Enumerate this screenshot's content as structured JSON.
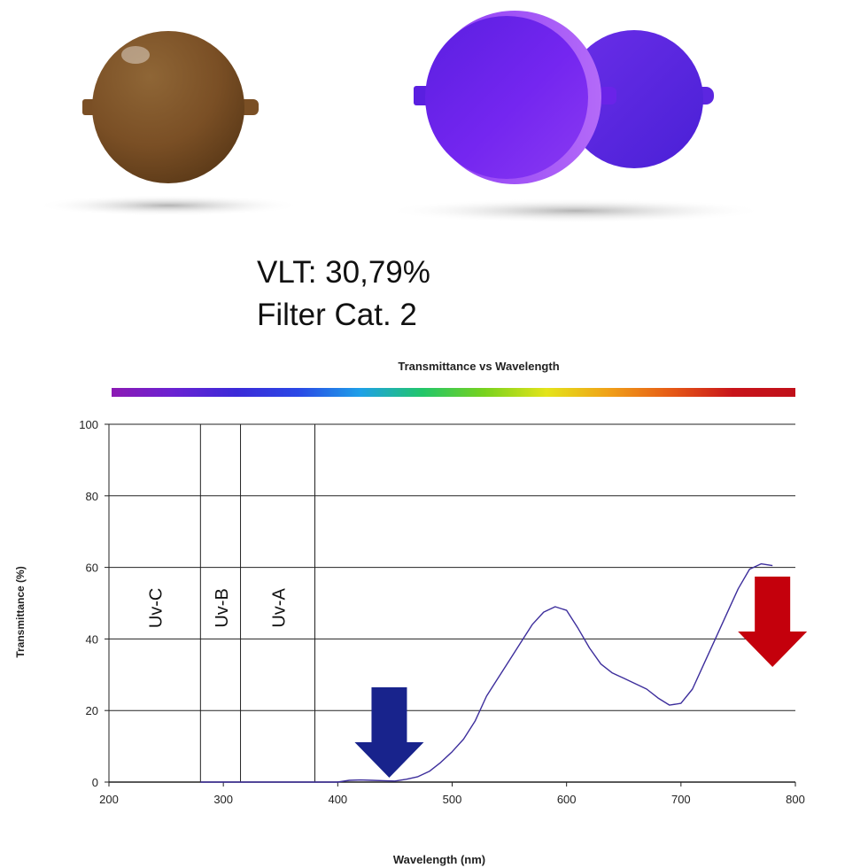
{
  "product": {
    "vlt_text": "VLT: 30,79%",
    "filter_text": "Filter Cat. 2",
    "lens_colors": {
      "brown": "#7a4f25",
      "purple": "#6a23e8",
      "purple_back": "#5c26e0"
    }
  },
  "chart_data": {
    "type": "line",
    "title": "Transmittance vs Wavelength",
    "xlabel": "Wavelength (nm)",
    "ylabel": "Transmittance (%)",
    "xlim": [
      200,
      800
    ],
    "ylim": [
      0,
      100
    ],
    "x_ticks": [
      200,
      300,
      400,
      500,
      600,
      700,
      800
    ],
    "y_ticks": [
      0,
      20,
      40,
      60,
      80,
      100
    ],
    "grid": "horizontal",
    "regions": [
      {
        "label": "Uv-C",
        "from": 200,
        "to": 280
      },
      {
        "label": "Uv-B",
        "from": 280,
        "to": 315
      },
      {
        "label": "Uv-A",
        "from": 315,
        "to": 380
      }
    ],
    "series": [
      {
        "color": "#3d2e9c",
        "x": [
          280,
          300,
          350,
          380,
          400,
          410,
          420,
          430,
          440,
          450,
          460,
          470,
          480,
          490,
          500,
          510,
          520,
          530,
          540,
          550,
          560,
          570,
          580,
          590,
          600,
          610,
          620,
          630,
          640,
          650,
          660,
          670,
          680,
          690,
          700,
          710,
          720,
          730,
          740,
          750,
          760,
          770,
          780
        ],
        "y": [
          0,
          0,
          0,
          0,
          0,
          0.5,
          0.6,
          0.5,
          0.4,
          0.3,
          0.8,
          1.5,
          3,
          5.5,
          8.5,
          12,
          17,
          24,
          29,
          34,
          39,
          44,
          47.5,
          49,
          48,
          43,
          37.5,
          33,
          30.5,
          29,
          27.5,
          26,
          23.5,
          21.5,
          22,
          26,
          33,
          40,
          47,
          54,
          59.5,
          61,
          60.5
        ]
      }
    ],
    "annotations": [
      {
        "shape": "down-arrow",
        "x": 445,
        "color": "#18238c"
      },
      {
        "shape": "down-arrow",
        "x": 780,
        "color": "#c4000c"
      }
    ],
    "spectrum_bar_colors": [
      "#8c1ab4",
      "#6a22d2",
      "#3b2ad8",
      "#2a48e6",
      "#1ea0e8",
      "#22c66a",
      "#78d21e",
      "#e4e41a",
      "#f0a018",
      "#e65a16",
      "#c8141a",
      "#c0101a"
    ]
  }
}
